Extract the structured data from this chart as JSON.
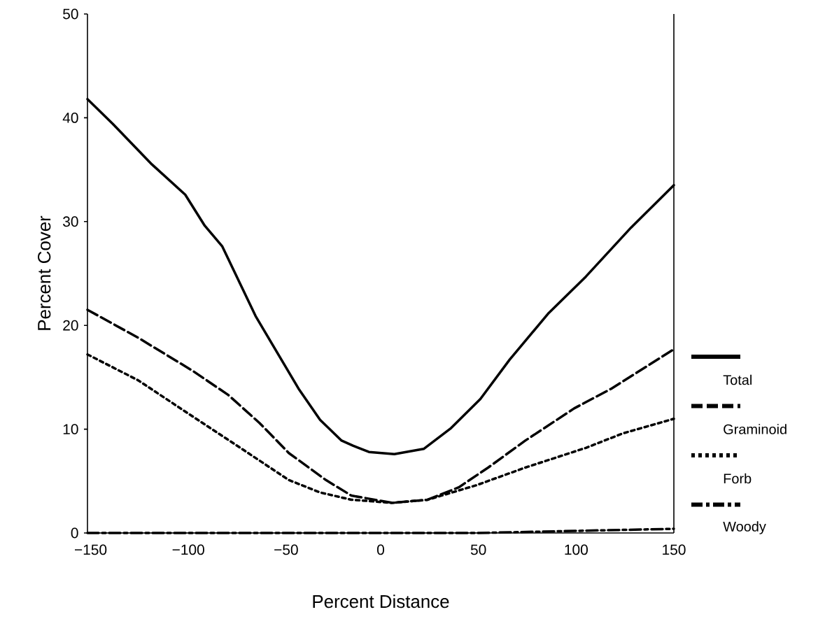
{
  "chart_data": {
    "type": "line",
    "xlabel": "Percent Distance",
    "ylabel": "Percent Cover",
    "xlim": [
      -150,
      150
    ],
    "ylim": [
      0,
      50
    ],
    "xticks": [
      {
        "value": -150,
        "label": "−150"
      },
      {
        "value": -100,
        "label": "−100"
      },
      {
        "value": -50,
        "label": "−50"
      },
      0,
      50,
      100,
      150
    ],
    "yticks": [
      0,
      10,
      20,
      30,
      40,
      50
    ],
    "grid": false,
    "legend": "right",
    "marker": "none",
    "series": [
      {
        "name": "Total",
        "color": "#000000",
        "line_style": "solid",
        "x": [
          -150,
          -137,
          -117,
          -100,
          -90,
          -81,
          -64,
          -53,
          -42,
          -31,
          -20,
          -14,
          -6,
          7,
          22,
          36,
          51,
          66,
          86,
          105,
          128,
          150
        ],
        "values": [
          41.8,
          39.4,
          35.5,
          32.6,
          29.6,
          27.6,
          20.9,
          17.4,
          13.9,
          10.9,
          8.9,
          8.4,
          7.8,
          7.6,
          8.1,
          10.1,
          12.9,
          16.7,
          21.2,
          24.7,
          29.4,
          33.5
        ]
      },
      {
        "name": "Graminoid",
        "color": "#000000",
        "line_style": "dashed",
        "x": [
          -150,
          -124,
          -96,
          -78,
          -62,
          -47,
          -28,
          -15,
          6,
          24,
          40,
          55,
          74,
          99,
          118,
          150
        ],
        "values": [
          21.5,
          18.8,
          15.6,
          13.3,
          10.6,
          7.7,
          5.1,
          3.6,
          2.9,
          3.2,
          4.4,
          6.3,
          8.9,
          12.0,
          13.9,
          17.7
        ]
      },
      {
        "name": "Forb",
        "color": "#000000",
        "line_style": "dotted",
        "x": [
          -150,
          -124,
          -96,
          -75,
          -47,
          -31,
          -15,
          6,
          24,
          49,
          74,
          105,
          124,
          150
        ],
        "values": [
          17.2,
          14.7,
          11.2,
          8.6,
          5.1,
          3.9,
          3.2,
          2.9,
          3.2,
          4.6,
          6.3,
          8.2,
          9.6,
          11.0
        ]
      },
      {
        "name": "Woody",
        "color": "#000000",
        "line_style": "dashdot",
        "x": [
          -150,
          0,
          50,
          100,
          150
        ],
        "values": [
          0,
          0,
          0,
          0.2,
          0.4
        ]
      }
    ]
  }
}
